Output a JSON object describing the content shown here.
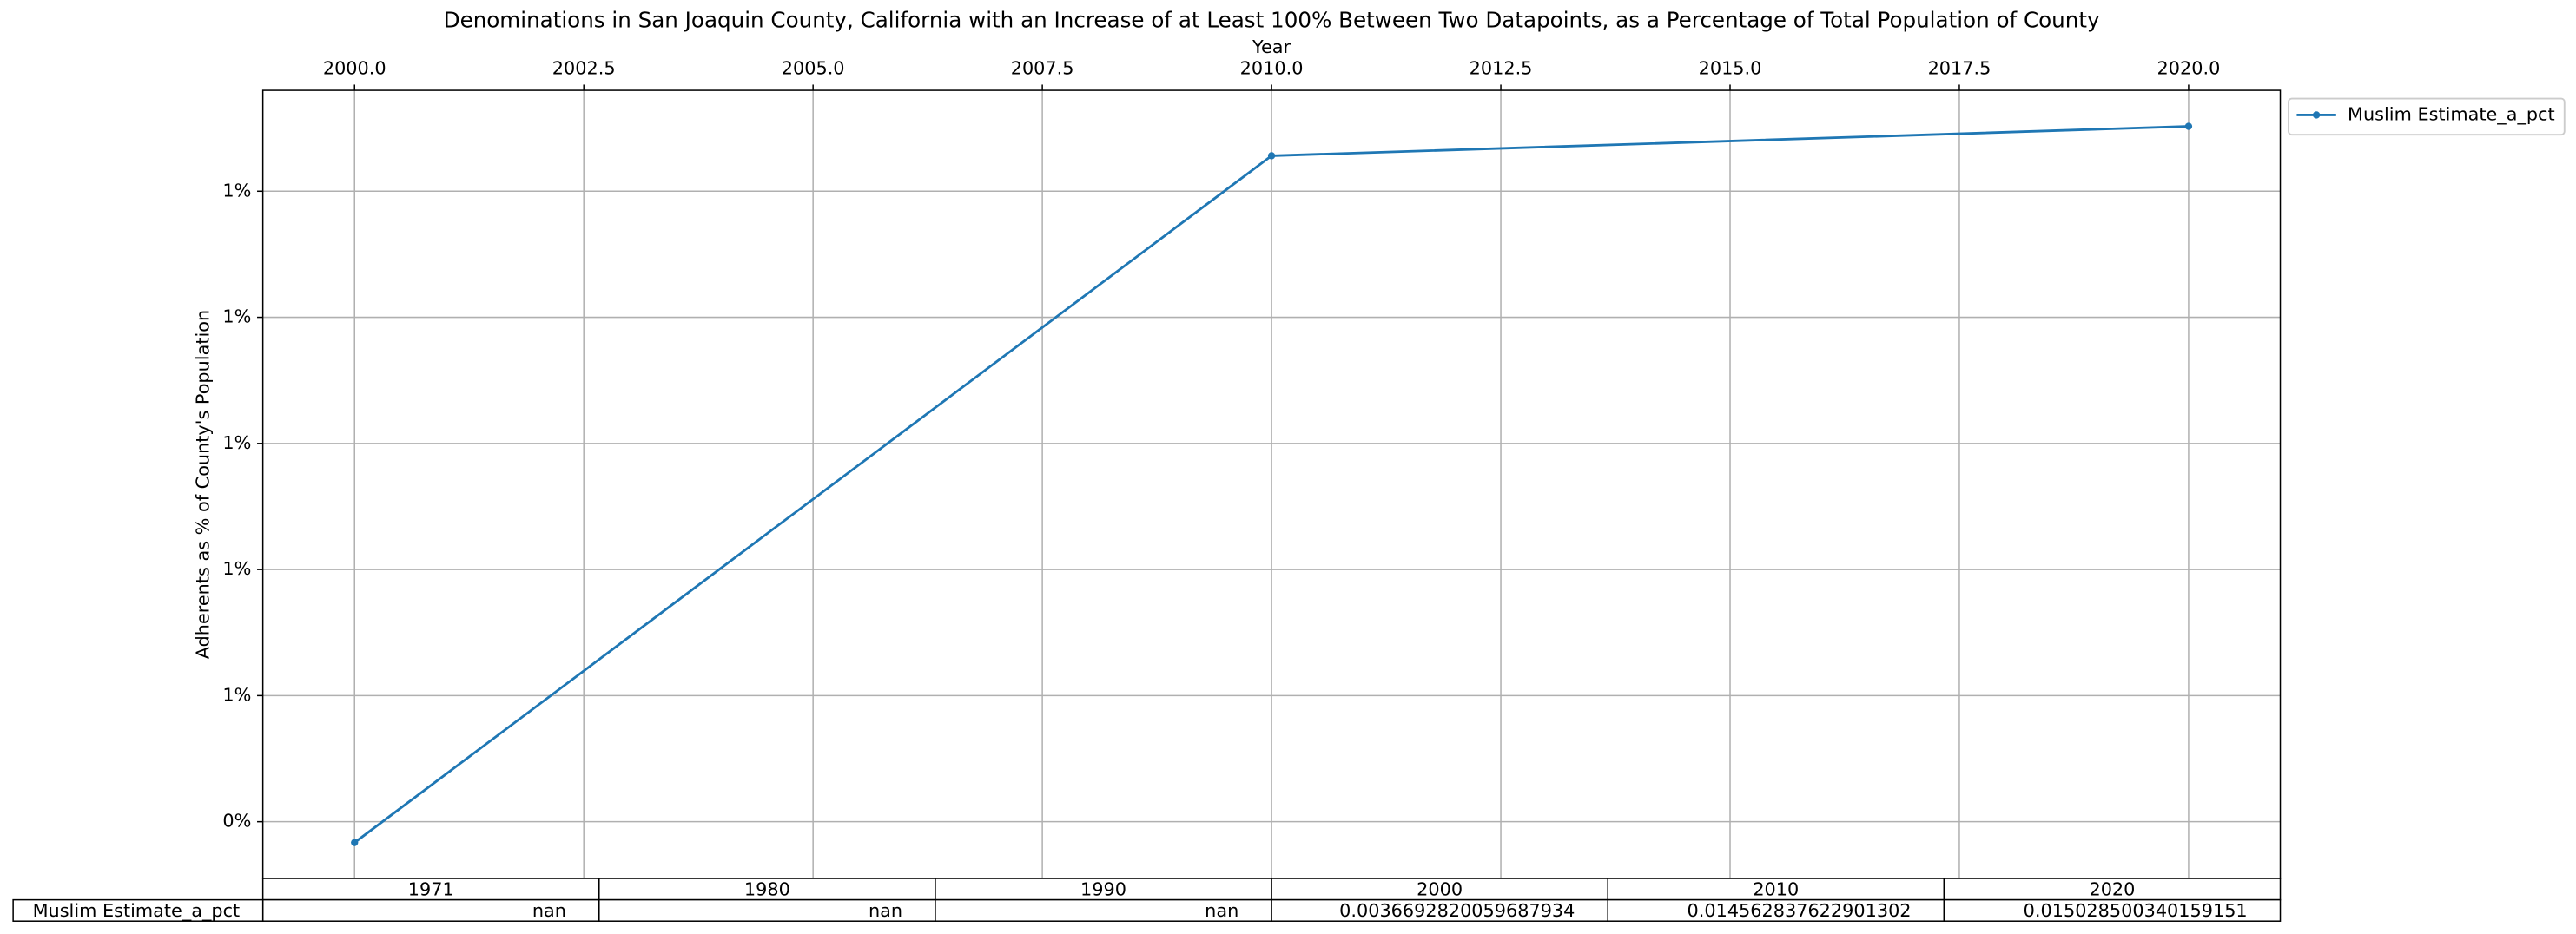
{
  "chart_data": {
    "type": "line",
    "title": "Denominations in San Joaquin County, California with an Increase of at Least 100% Between Two Datapoints, as a Percentage of Total Population of County",
    "xlabel": "Year",
    "ylabel": "Adherents as % of County's Population",
    "x": [
      2000,
      2010,
      2020
    ],
    "series": [
      {
        "name": "Muslim Estimate_a_pct",
        "color": "#1f77b4",
        "values": [
          0.003669282,
          0.014562838,
          0.0150285
        ]
      }
    ],
    "xlim": [
      1999.0,
      2021.0
    ],
    "xticks": [
      {
        "value": 2000,
        "label": "2000.0"
      },
      {
        "value": 2002.5,
        "label": "2002.5"
      },
      {
        "value": 2005,
        "label": "2005.0"
      },
      {
        "value": 2007.5,
        "label": "2007.5"
      },
      {
        "value": 2010,
        "label": "2010.0"
      },
      {
        "value": 2012.5,
        "label": "2012.5"
      },
      {
        "value": 2015,
        "label": "2015.0"
      },
      {
        "value": 2017.5,
        "label": "2017.5"
      },
      {
        "value": 2020,
        "label": "2020.0"
      }
    ],
    "ylim": [
      0.0031,
      0.0156
    ],
    "yticks": [
      {
        "value": 0.004,
        "label": "0%"
      },
      {
        "value": 0.006,
        "label": "1%"
      },
      {
        "value": 0.008,
        "label": "1%"
      },
      {
        "value": 0.01,
        "label": "1%"
      },
      {
        "value": 0.012,
        "label": "1%"
      },
      {
        "value": 0.014,
        "label": "1%"
      }
    ],
    "grid": true,
    "legend": "outside upper right",
    "table": {
      "columns": [
        "1971",
        "1980",
        "1990",
        "2000",
        "2010",
        "2020"
      ],
      "row_label": "Muslim Estimate_a_pct",
      "cells": [
        "nan",
        "nan",
        "nan",
        "0.0036692820059687934",
        "0.014562837622901302",
        "0.015028500340159151"
      ]
    }
  }
}
